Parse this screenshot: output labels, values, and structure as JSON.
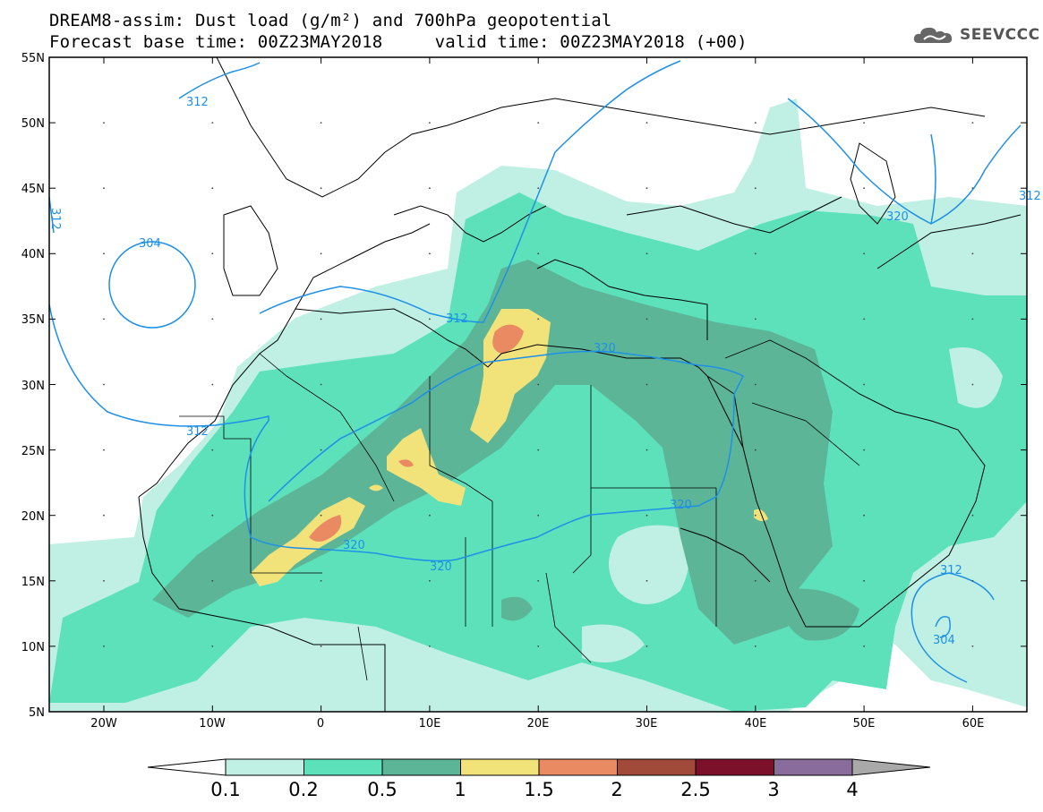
{
  "header": {
    "title_line1": "DREAM8-assim: Dust load (g/m²) and 700hPa geopotential",
    "title_line2": "Forecast base time: 00Z23MAY2018     valid time: 00Z23MAY2018 (+00)"
  },
  "logo": {
    "text": "SEEVCCC",
    "icon": "cloud-icon"
  },
  "map": {
    "lat_labels": [
      "55N",
      "50N",
      "45N",
      "40N",
      "35N",
      "30N",
      "25N",
      "20N",
      "15N",
      "10N",
      "5N"
    ],
    "lon_labels": [
      "20W",
      "10W",
      "0",
      "10E",
      "20E",
      "30E",
      "40E",
      "50E",
      "60E"
    ],
    "contour_labels": [
      "312",
      "312",
      "304",
      "312",
      "312",
      "320",
      "320",
      "320",
      "320",
      "320",
      "312",
      "304",
      "312"
    ]
  },
  "colorbar": {
    "levels": [
      "0.1",
      "0.2",
      "0.5",
      "1",
      "1.5",
      "2",
      "2.5",
      "3",
      "4"
    ],
    "colors": [
      "#bff0e3",
      "#5ce1bb",
      "#5cb596",
      "#f2e27a",
      "#e98a62",
      "#a14a3a",
      "#7c0f2a",
      "#8a6c9c",
      "#a9a9a9"
    ]
  },
  "chart_data": {
    "type": "map",
    "title": "DREAM8-assim: Dust load (g/m²) and 700hPa geopotential",
    "lat_range": [
      "5N",
      "55N"
    ],
    "lon_range": [
      "25W",
      "65E"
    ],
    "legend_levels": [
      0.1,
      0.2,
      0.5,
      1,
      1.5,
      2,
      2.5,
      3,
      4
    ],
    "contour_values": [
      304,
      312,
      320
    ]
  }
}
